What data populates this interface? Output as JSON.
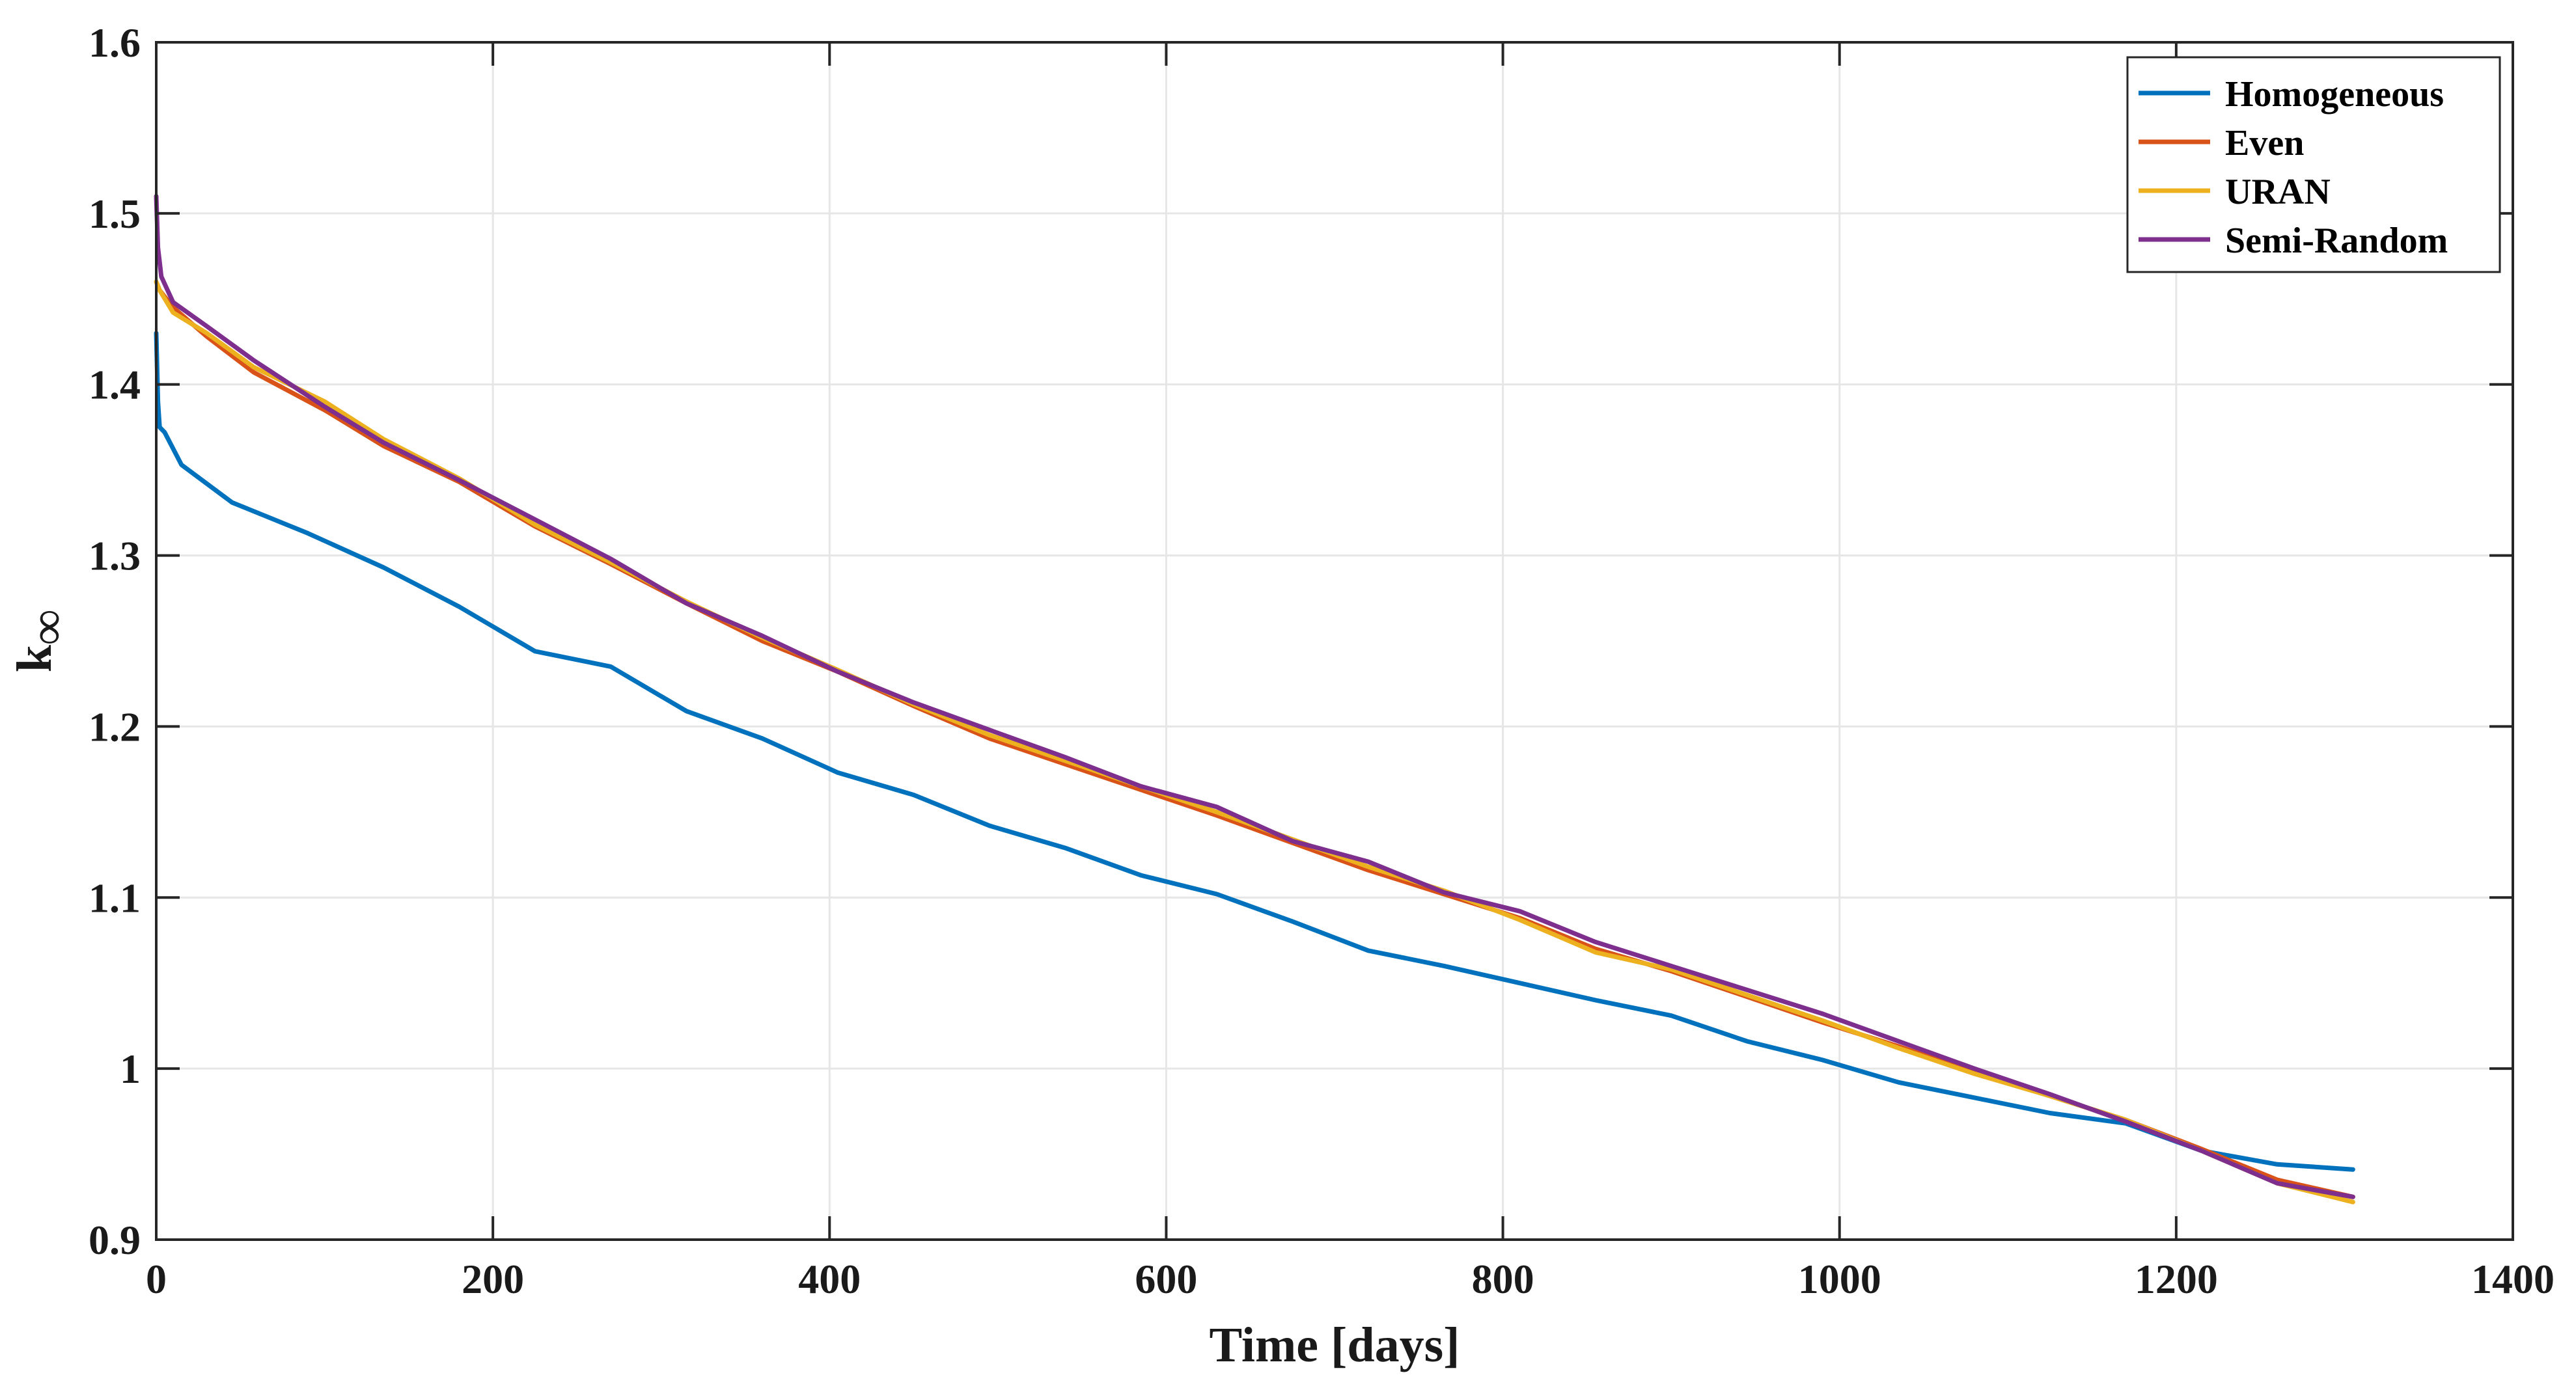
{
  "chart_data": {
    "type": "line",
    "xlabel": "Time [days]",
    "ylabel_main": "k",
    "ylabel_sub": "∞",
    "xlim": [
      0,
      1400
    ],
    "ylim": [
      0.9,
      1.6
    ],
    "xticks": [
      0,
      200,
      400,
      600,
      800,
      1000,
      1200,
      1400
    ],
    "yticks": [
      0.9,
      1,
      1.1,
      1.2,
      1.3,
      1.4,
      1.5,
      1.6
    ],
    "xtick_labels": [
      "0",
      "200",
      "400",
      "600",
      "800",
      "1000",
      "1200",
      "1400"
    ],
    "ytick_labels": [
      "0.9",
      "1",
      "1.1",
      "1.2",
      "1.3",
      "1.4",
      "1.5",
      "1.6"
    ],
    "grid": true,
    "legend_position": "top-right",
    "series": [
      {
        "name": "Homogeneous",
        "color": "#0072BD",
        "points": [
          [
            0,
            1.43
          ],
          [
            1,
            1.39
          ],
          [
            2,
            1.375
          ],
          [
            5,
            1.372
          ],
          [
            15,
            1.353
          ],
          [
            45,
            1.331
          ],
          [
            90,
            1.313
          ],
          [
            135,
            1.293
          ],
          [
            180,
            1.27
          ],
          [
            225,
            1.244
          ],
          [
            270,
            1.235
          ],
          [
            315,
            1.209
          ],
          [
            360,
            1.193
          ],
          [
            405,
            1.173
          ],
          [
            450,
            1.16
          ],
          [
            495,
            1.142
          ],
          [
            540,
            1.129
          ],
          [
            585,
            1.113
          ],
          [
            630,
            1.102
          ],
          [
            675,
            1.086
          ],
          [
            720,
            1.069
          ],
          [
            765,
            1.06
          ],
          [
            810,
            1.05
          ],
          [
            855,
            1.04
          ],
          [
            900,
            1.031
          ],
          [
            945,
            1.016
          ],
          [
            990,
            1.005
          ],
          [
            1035,
            0.992
          ],
          [
            1080,
            0.983
          ],
          [
            1125,
            0.974
          ],
          [
            1170,
            0.968
          ],
          [
            1215,
            0.952
          ],
          [
            1260,
            0.944
          ],
          [
            1305,
            0.941
          ]
        ]
      },
      {
        "name": "Even",
        "color": "#D95319",
        "points": [
          [
            0,
            1.46
          ],
          [
            2,
            1.455
          ],
          [
            10,
            1.445
          ],
          [
            30,
            1.428
          ],
          [
            58,
            1.407
          ],
          [
            100,
            1.385
          ],
          [
            135,
            1.364
          ],
          [
            180,
            1.343
          ],
          [
            225,
            1.317
          ],
          [
            270,
            1.295
          ],
          [
            315,
            1.272
          ],
          [
            360,
            1.25
          ],
          [
            405,
            1.232
          ],
          [
            450,
            1.212
          ],
          [
            495,
            1.193
          ],
          [
            540,
            1.178
          ],
          [
            585,
            1.163
          ],
          [
            630,
            1.148
          ],
          [
            675,
            1.132
          ],
          [
            720,
            1.116
          ],
          [
            765,
            1.102
          ],
          [
            810,
            1.088
          ],
          [
            855,
            1.07
          ],
          [
            900,
            1.057
          ],
          [
            945,
            1.042
          ],
          [
            990,
            1.027
          ],
          [
            1035,
            1.013
          ],
          [
            1080,
            0.998
          ],
          [
            1125,
            0.984
          ],
          [
            1170,
            0.97
          ],
          [
            1215,
            0.953
          ],
          [
            1260,
            0.935
          ],
          [
            1305,
            0.925
          ]
        ]
      },
      {
        "name": "URAN",
        "color": "#EDB120",
        "points": [
          [
            0,
            1.46
          ],
          [
            2,
            1.455
          ],
          [
            10,
            1.442
          ],
          [
            30,
            1.43
          ],
          [
            58,
            1.41
          ],
          [
            100,
            1.39
          ],
          [
            135,
            1.368
          ],
          [
            180,
            1.345
          ],
          [
            225,
            1.318
          ],
          [
            270,
            1.296
          ],
          [
            315,
            1.273
          ],
          [
            360,
            1.252
          ],
          [
            405,
            1.233
          ],
          [
            450,
            1.213
          ],
          [
            495,
            1.195
          ],
          [
            540,
            1.18
          ],
          [
            585,
            1.165
          ],
          [
            630,
            1.15
          ],
          [
            675,
            1.134
          ],
          [
            720,
            1.118
          ],
          [
            765,
            1.104
          ],
          [
            810,
            1.087
          ],
          [
            855,
            1.068
          ],
          [
            900,
            1.058
          ],
          [
            945,
            1.043
          ],
          [
            990,
            1.028
          ],
          [
            1035,
            1.012
          ],
          [
            1080,
            0.997
          ],
          [
            1125,
            0.984
          ],
          [
            1170,
            0.97
          ],
          [
            1215,
            0.952
          ],
          [
            1260,
            0.933
          ],
          [
            1305,
            0.922
          ]
        ]
      },
      {
        "name": "Semi-Random",
        "color": "#7E2F8E",
        "points": [
          [
            0,
            1.51
          ],
          [
            1,
            1.48
          ],
          [
            3,
            1.463
          ],
          [
            10,
            1.448
          ],
          [
            30,
            1.434
          ],
          [
            58,
            1.414
          ],
          [
            100,
            1.387
          ],
          [
            135,
            1.366
          ],
          [
            180,
            1.344
          ],
          [
            225,
            1.321
          ],
          [
            270,
            1.298
          ],
          [
            315,
            1.272
          ],
          [
            360,
            1.253
          ],
          [
            405,
            1.232
          ],
          [
            450,
            1.214
          ],
          [
            495,
            1.198
          ],
          [
            540,
            1.182
          ],
          [
            585,
            1.165
          ],
          [
            630,
            1.153
          ],
          [
            675,
            1.133
          ],
          [
            720,
            1.121
          ],
          [
            765,
            1.103
          ],
          [
            810,
            1.092
          ],
          [
            855,
            1.074
          ],
          [
            900,
            1.06
          ],
          [
            945,
            1.046
          ],
          [
            990,
            1.032
          ],
          [
            1035,
            1.016
          ],
          [
            1080,
            1.0
          ],
          [
            1125,
            0.985
          ],
          [
            1170,
            0.969
          ],
          [
            1215,
            0.952
          ],
          [
            1260,
            0.933
          ],
          [
            1305,
            0.925
          ]
        ]
      }
    ]
  }
}
